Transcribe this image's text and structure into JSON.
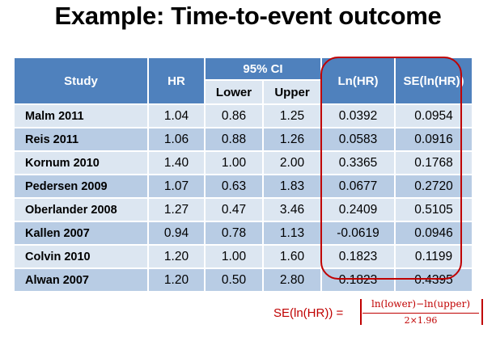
{
  "title": "Example: Time-to-event outcome",
  "table": {
    "headers": {
      "study": "Study",
      "hr": "HR",
      "ci": "95% CI",
      "lower": "Lower",
      "upper": "Upper",
      "ln_hr": "Ln(HR)",
      "se_ln_hr": "SE(ln(HR))"
    },
    "rows": [
      {
        "study": "Malm 2011",
        "hr": "1.04",
        "lower": "0.86",
        "upper": "1.25",
        "ln_hr": "0.0392",
        "se": "0.0954"
      },
      {
        "study": "Reis 2011",
        "hr": "1.06",
        "lower": "0.88",
        "upper": "1.26",
        "ln_hr": "0.0583",
        "se": "0.0916"
      },
      {
        "study": "Kornum 2010",
        "hr": "1.40",
        "lower": "1.00",
        "upper": "2.00",
        "ln_hr": "0.3365",
        "se": "0.1768"
      },
      {
        "study": "Pedersen 2009",
        "hr": "1.07",
        "lower": "0.63",
        "upper": "1.83",
        "ln_hr": "0.0677",
        "se": "0.2720"
      },
      {
        "study": "Oberlander 2008",
        "hr": "1.27",
        "lower": "0.47",
        "upper": "3.46",
        "ln_hr": "0.2409",
        "se": "0.5105"
      },
      {
        "study": "Kallen 2007",
        "hr": "0.94",
        "lower": "0.78",
        "upper": "1.13",
        "ln_hr": "-0.0619",
        "se": "0.0946"
      },
      {
        "study": "Colvin 2010",
        "hr": "1.20",
        "lower": "1.00",
        "upper": "1.60",
        "ln_hr": "0.1823",
        "se": "0.1199"
      },
      {
        "study": "Alwan 2007",
        "hr": "1.20",
        "lower": "0.50",
        "upper": "2.80",
        "ln_hr": "0.1823",
        "se": "0.4395"
      }
    ]
  },
  "formula": {
    "lhs": "SE(ln(HR)) =",
    "numerator": "ln(lower)−ln(upper)",
    "denominator": "2×1.96"
  },
  "colors": {
    "header": "#4f81bd",
    "row_light": "#dce6f1",
    "row_dark": "#b8cce4",
    "highlight": "#c00000"
  }
}
